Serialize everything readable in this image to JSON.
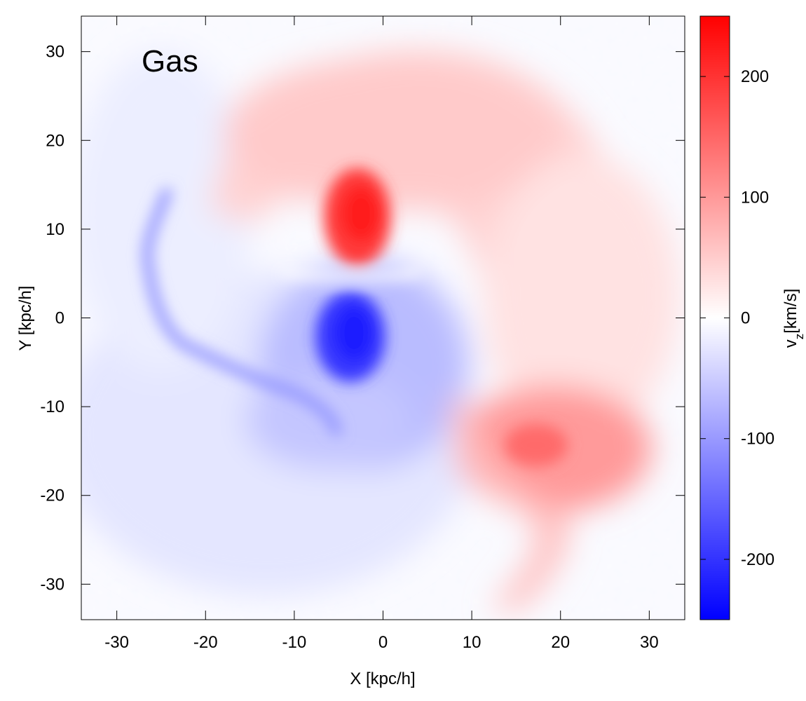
{
  "chart_data": {
    "type": "heatmap",
    "panel_label": "Gas",
    "xlabel": "X [kpc/h]",
    "ylabel": "Y [kpc/h]",
    "colorbar_label_main": "v",
    "colorbar_label_sub": "z",
    "colorbar_label_unit": "[km/s]",
    "xlim": [
      -34,
      34
    ],
    "ylim": [
      -34,
      34
    ],
    "xticks": [
      -30,
      -20,
      -10,
      0,
      10,
      20,
      30
    ],
    "yticks": [
      -30,
      -20,
      -10,
      0,
      10,
      20,
      30
    ],
    "xtick_labels": [
      "-30",
      "-20",
      "-10",
      "0",
      "10",
      "20",
      "30"
    ],
    "ytick_labels": [
      "-30",
      "-20",
      "-10",
      "0",
      "10",
      "20",
      "30"
    ],
    "colorbar": {
      "min": -250,
      "max": 250,
      "ticks": [
        200,
        100,
        0,
        -100,
        -200
      ],
      "tick_labels": [
        "200",
        "100",
        "0",
        "-100",
        "-200"
      ],
      "color_min": "#0000ff",
      "color_mid": "#ffffff",
      "color_max": "#ff0000"
    },
    "features": [
      {
        "name": "upper red core",
        "x": -3,
        "y": 11.5,
        "vz": 210
      },
      {
        "name": "red arc",
        "x": 5,
        "y": 22,
        "vz": 70
      },
      {
        "name": "central blue core",
        "x": -3,
        "y": -2.5,
        "vz": -210
      },
      {
        "name": "lower-right red spiral",
        "x": 18,
        "y": -14,
        "vz": 120
      },
      {
        "name": "blue filament",
        "x": -25,
        "y": 5,
        "vz": -110
      }
    ]
  }
}
